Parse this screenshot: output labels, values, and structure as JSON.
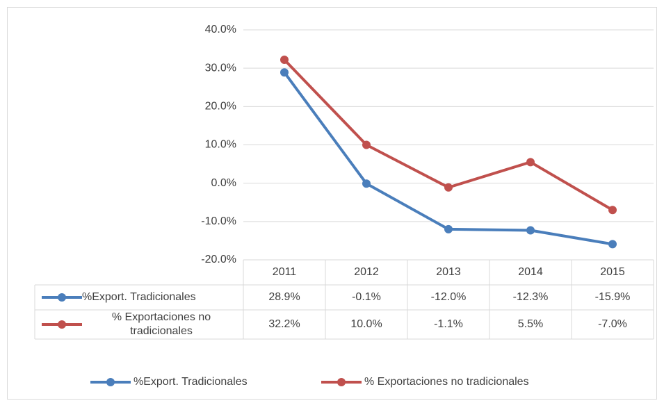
{
  "chart_data": {
    "type": "line",
    "categories": [
      "2011",
      "2012",
      "2013",
      "2014",
      "2015"
    ],
    "series": [
      {
        "name": "%Export. Tradicionales",
        "color": "#4a7ebb",
        "values": [
          28.9,
          -0.1,
          -12.0,
          -12.3,
          -15.9
        ],
        "value_labels": [
          "28.9%",
          "-0.1%",
          "-12.0%",
          "-12.3%",
          "-15.9%"
        ]
      },
      {
        "name": "% Exportaciones no tradicionales",
        "color": "#c0504d",
        "values": [
          32.2,
          10.0,
          -1.1,
          5.5,
          -7.0
        ],
        "value_labels": [
          "32.2%",
          "10.0%",
          "-1.1%",
          "5.5%",
          "-7.0%"
        ]
      }
    ],
    "ylim": [
      -20,
      40
    ],
    "yticks": [
      {
        "value": -20,
        "label": "-20.0%"
      },
      {
        "value": -10,
        "label": "-10.0%"
      },
      {
        "value": 0,
        "label": "0.0%"
      },
      {
        "value": 10,
        "label": "10.0%"
      },
      {
        "value": 20,
        "label": "20.0%"
      },
      {
        "value": 30,
        "label": "30.0%"
      },
      {
        "value": 40,
        "label": "40.0%"
      }
    ],
    "grid": true,
    "data_table": true,
    "legend": "bottom"
  }
}
